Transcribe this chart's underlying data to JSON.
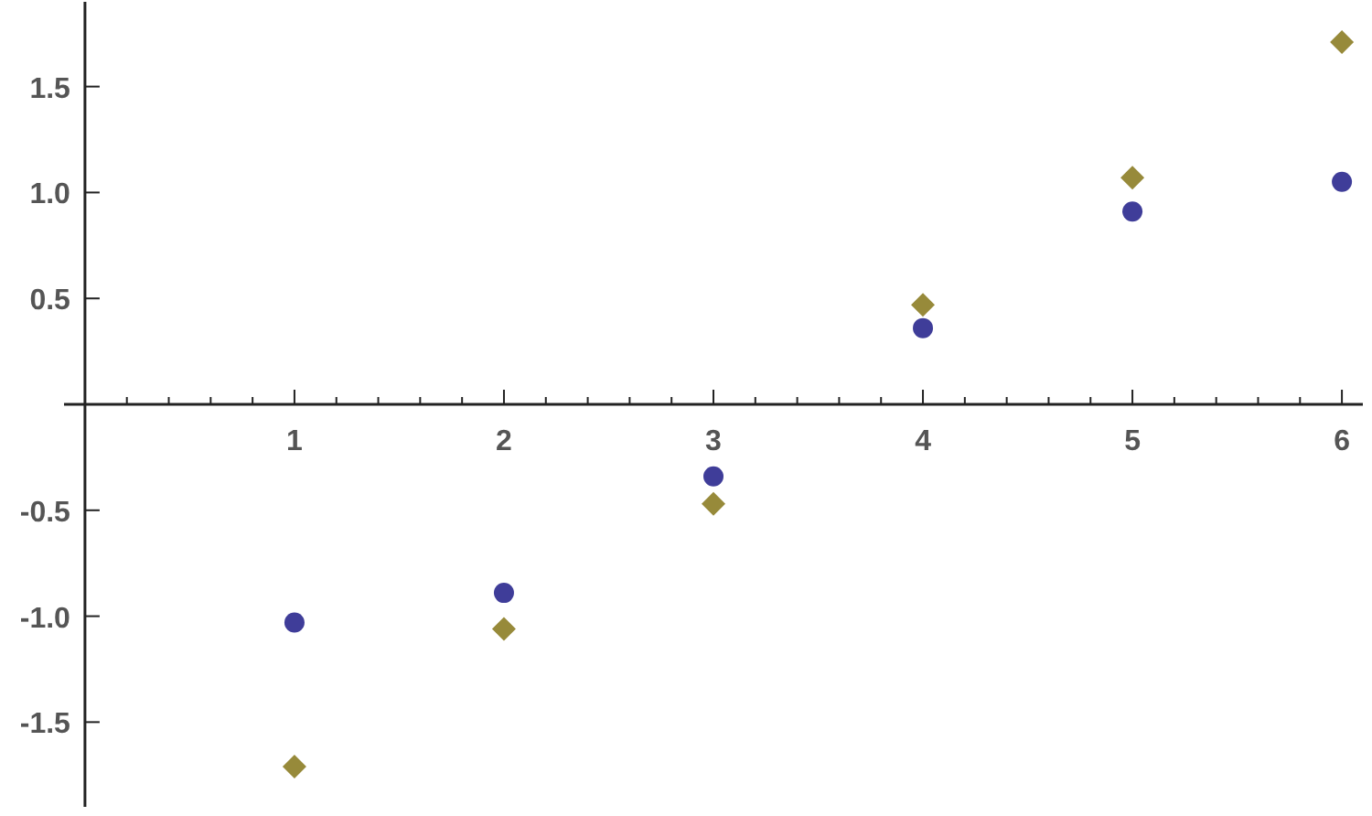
{
  "chart_data": {
    "type": "scatter",
    "x": [
      1,
      2,
      3,
      4,
      5,
      6
    ],
    "series": [
      {
        "color": "#3f3d99",
        "marker": "circle",
        "values": [
          -1.03,
          -0.89,
          -0.34,
          0.36,
          0.91,
          1.05
        ]
      },
      {
        "color": "#978a3a",
        "marker": "diamond",
        "values": [
          -1.71,
          -1.06,
          -0.47,
          0.47,
          1.07,
          1.71
        ]
      }
    ],
    "xlim": [
      -0.1,
      6.1
    ],
    "ylim": [
      -1.9,
      1.9
    ],
    "xticks": [
      {
        "value": 0.2,
        "label": null
      },
      {
        "value": 0.4,
        "label": null
      },
      {
        "value": 0.6,
        "label": null
      },
      {
        "value": 0.8,
        "label": null
      },
      1,
      {
        "value": 1.2,
        "label": null
      },
      {
        "value": 1.4,
        "label": null
      },
      {
        "value": 1.6,
        "label": null
      },
      {
        "value": 1.8,
        "label": null
      },
      2,
      {
        "value": 2.2,
        "label": null
      },
      {
        "value": 2.4,
        "label": null
      },
      {
        "value": 2.6,
        "label": null
      },
      {
        "value": 2.8,
        "label": null
      },
      3,
      {
        "value": 3.2,
        "label": null
      },
      {
        "value": 3.4,
        "label": null
      },
      {
        "value": 3.6,
        "label": null
      },
      {
        "value": 3.8,
        "label": null
      },
      4,
      {
        "value": 4.2,
        "label": null
      },
      {
        "value": 4.4,
        "label": null
      },
      {
        "value": 4.6,
        "label": null
      },
      {
        "value": 4.8,
        "label": null
      },
      5,
      {
        "value": 5.2,
        "label": null
      },
      {
        "value": 5.4,
        "label": null
      },
      {
        "value": 5.6,
        "label": null
      },
      {
        "value": 5.8,
        "label": null
      },
      6
    ],
    "yticks": [
      {
        "value": -1.5,
        "label": "-1.5"
      },
      {
        "value": -1,
        "label": "-1.0"
      },
      {
        "value": -0.5,
        "label": "-0.5"
      },
      {
        "value": 0.5,
        "label": "0.5"
      },
      {
        "value": 1,
        "label": "1.0"
      },
      {
        "value": 1.5,
        "label": "1.5"
      }
    ],
    "grid": false
  }
}
